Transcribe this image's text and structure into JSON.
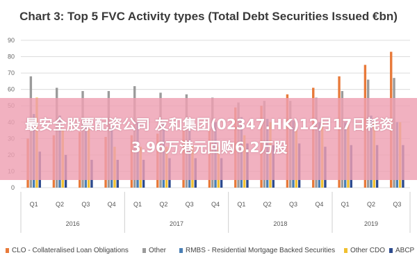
{
  "watermark_text": "最安全股票配资公司 友和集团(02347.HK)12月17日耗资3.96万港元回购6.2万股",
  "chart_data": {
    "type": "bar",
    "title": "Chart 3: Top 5 FVC Activity types (Total Debt Securities Issued €bn)",
    "xlabel": "",
    "ylabel": "",
    "ylim": [
      0,
      90
    ],
    "yticks": [
      0,
      10,
      20,
      30,
      40,
      50,
      60,
      70,
      80,
      90
    ],
    "grid": true,
    "legend_position": "bottom",
    "categories": [
      "Q1",
      "Q2",
      "Q3",
      "Q4",
      "Q1",
      "Q2",
      "Q3",
      "Q4",
      "Q1",
      "Q2",
      "Q3",
      "Q4",
      "Q1",
      "Q2",
      "Q3"
    ],
    "groups": [
      {
        "label": "2016",
        "count": 4
      },
      {
        "label": "2017",
        "count": 4
      },
      {
        "label": "2018",
        "count": 4
      },
      {
        "label": "2019",
        "count": 3
      }
    ],
    "series": [
      {
        "name": "CLO - Collateralised Loan Obligations",
        "color": "#e87a3a",
        "values": [
          30,
          32,
          34,
          31,
          32,
          33,
          35,
          36,
          49,
          50,
          57,
          61,
          68,
          75,
          83
        ]
      },
      {
        "name": "Other",
        "color": "#9b9b9b",
        "values": [
          68,
          61,
          59,
          59,
          62,
          58,
          57,
          55,
          52,
          53,
          53,
          55,
          59,
          66,
          67
        ]
      },
      {
        "name": "RMBS - Residential Mortgage Backed Securities",
        "color": "#4a7fb5",
        "values": [
          45,
          44,
          38,
          38,
          40,
          40,
          40,
          40,
          43,
          42,
          41,
          40,
          40,
          44,
          40
        ]
      },
      {
        "name": "Other CDO",
        "color": "#f0c030",
        "values": [
          55,
          36,
          36,
          25,
          25,
          25,
          26,
          25,
          32,
          40,
          40,
          40,
          39,
          40,
          40
        ]
      },
      {
        "name": "ABCP",
        "color": "#2d4b8e",
        "values": [
          22,
          20,
          17,
          17,
          17,
          18,
          18,
          18,
          27,
          26,
          27,
          25,
          26,
          26,
          26
        ]
      }
    ]
  }
}
